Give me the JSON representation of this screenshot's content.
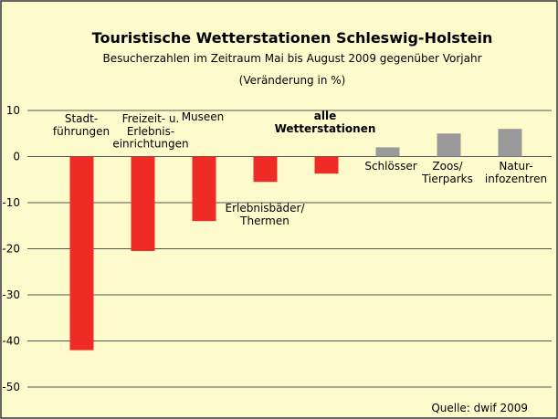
{
  "chart_data": {
    "type": "bar",
    "title": "Touristische Wetterstationen Schleswig-Holstein",
    "subtitle": "Besucherzahlen im Zeitraum Mai bis August 2009 gegenüber Vorjahr",
    "unit_label": "(Veränderung in %)",
    "source": "Quelle: dwif 2009",
    "categories": [
      "Stadt-\nführungen",
      "Freizeit- u.\nErlebnis-\neinrichtungen",
      "Museen",
      "Erlebnisbäder/\nThermen",
      "alle\nWetterstationen",
      "Schlösser",
      "Zoos/\nTierparks",
      "Natur-\ninfozentren"
    ],
    "values": [
      -42,
      -20.5,
      -14,
      -5.5,
      -3.7,
      2,
      5,
      6
    ],
    "colors": [
      "#ee2b24",
      "#ee2b24",
      "#ee2b24",
      "#ee2b24",
      "#ee2b24",
      "#9a9a9a",
      "#9a9a9a",
      "#9a9a9a"
    ],
    "ylim": [
      -50,
      10
    ],
    "yticks": [
      10,
      0,
      -10,
      -20,
      -30,
      -40,
      -50
    ],
    "grid": true
  }
}
